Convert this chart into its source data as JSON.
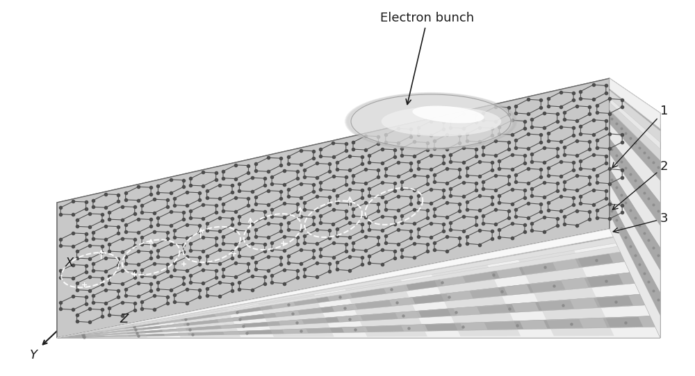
{
  "background_color": "#ffffff",
  "electron_bunch_label": "Electron bunch",
  "layer_labels": [
    "1",
    "2",
    "3"
  ],
  "axis_labels": [
    "X",
    "Y",
    "Z"
  ],
  "arrow_color": "#1a1a1a",
  "text_color": "#1a1a1a",
  "label_fontsize": 13,
  "axis_label_fontsize": 13,
  "figsize": [
    10.0,
    5.42
  ],
  "dpi": 100,
  "hex_node_color": "#4a4a4a",
  "hex_edge_color": "#4a4a4a",
  "body_color": "#c8c8c8",
  "layer_light": "#e8e8e8",
  "layer_dark": "#b0b0b0",
  "layer_white": "#f5f5f5",
  "top_surf_color": "#d2d2d2",
  "right_face_color": "#b8b8b8"
}
